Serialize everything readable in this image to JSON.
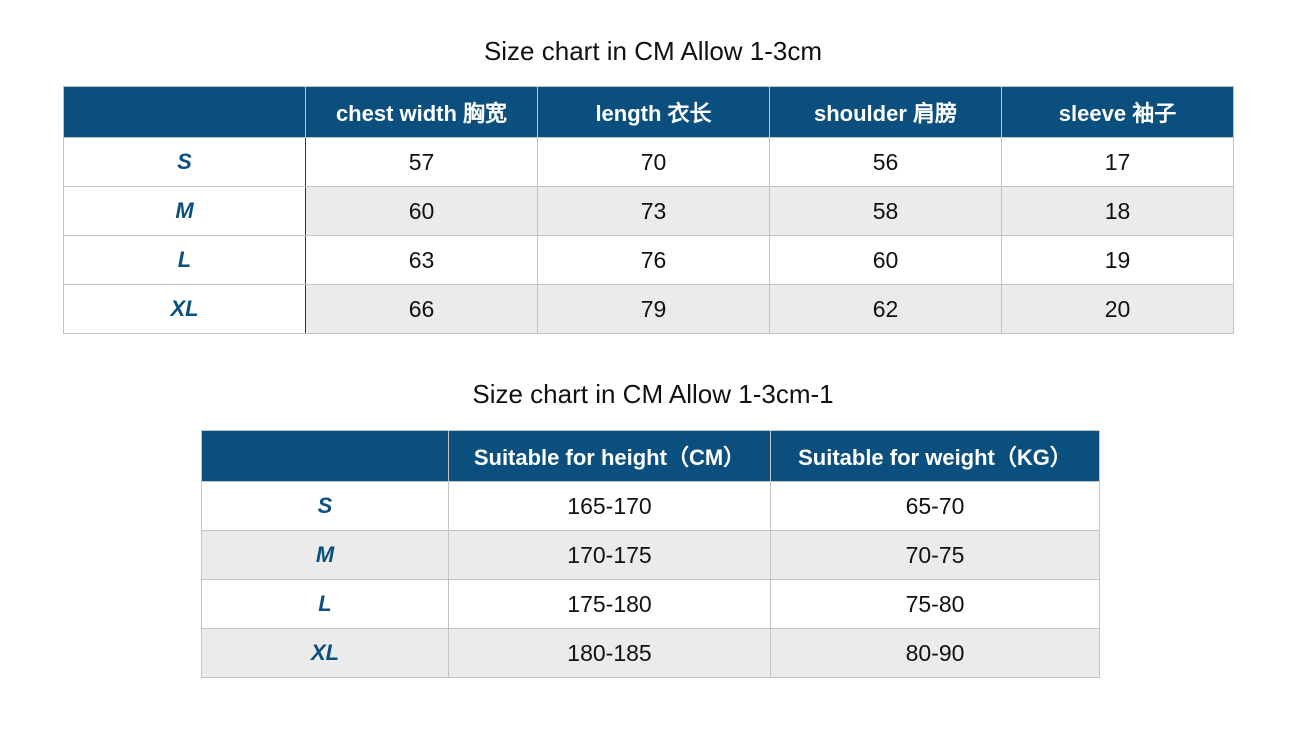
{
  "chart1": {
    "title": "Size chart in CM Allow 1-3cm",
    "headers": [
      "",
      "chest width 胸宽",
      "length 衣长",
      "shoulder 肩膀",
      "sleeve 袖子"
    ],
    "rows": [
      [
        "S",
        "57",
        "70",
        "56",
        "17"
      ],
      [
        "M",
        "60",
        "73",
        "58",
        "18"
      ],
      [
        "L",
        "63",
        "76",
        "60",
        "19"
      ],
      [
        "XL",
        "66",
        "79",
        "62",
        "20"
      ]
    ]
  },
  "chart2": {
    "title": "Size chart in CM Allow 1-3cm-1",
    "headers": [
      "",
      "Suitable for height（CM）",
      "Suitable for weight（KG）"
    ],
    "rows": [
      [
        "S",
        "165-170",
        "65-70"
      ],
      [
        "M",
        "170-175",
        "70-75"
      ],
      [
        "L",
        "175-180",
        "75-80"
      ],
      [
        "XL",
        "180-185",
        "80-90"
      ]
    ]
  },
  "colors": {
    "header": "#0b4f7e",
    "alt_row": "#ebebeb",
    "size_label": "#0b4f7e"
  }
}
